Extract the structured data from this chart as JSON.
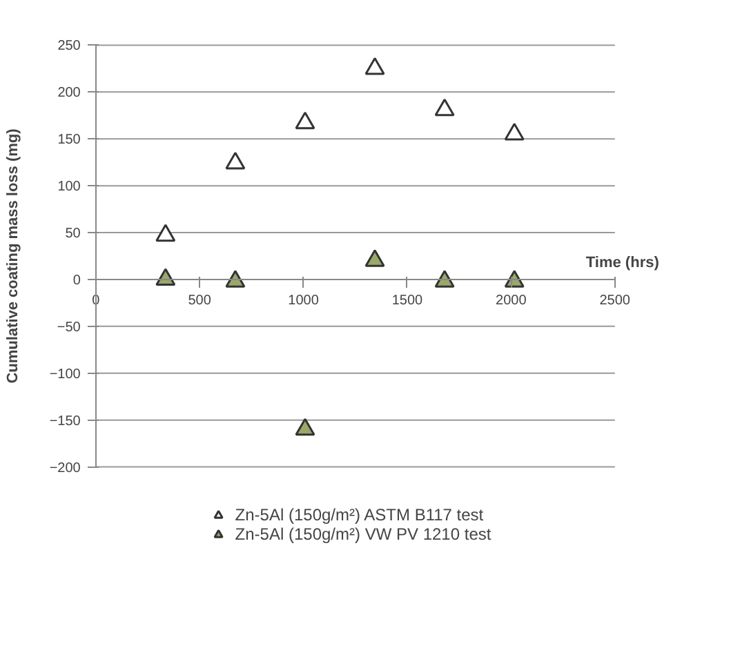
{
  "chart_data": {
    "type": "scatter",
    "xlabel": "Time (hrs)",
    "ylabel": "Cumulative coating mass loss (mg)",
    "x": [
      336,
      672,
      1008,
      1344,
      1680,
      2016
    ],
    "series": [
      {
        "name": "Zn-5Al (150g/m²) ASTM B117 test",
        "color": "#ffffff",
        "values": [
          47,
          124,
          167,
          225,
          181,
          155
        ]
      },
      {
        "name": "Zn-5Al (150g/m²) VW PV 1210 test",
        "color": "#9aa86a",
        "values": [
          0,
          -2,
          -160,
          20,
          -2,
          -2
        ]
      }
    ],
    "xlim": [
      0,
      2500
    ],
    "xticks": [
      0,
      500,
      1000,
      1500,
      2000,
      2500
    ],
    "ylim": [
      -200,
      250
    ],
    "yticks": [
      -200,
      -150,
      -100,
      -50,
      0,
      50,
      100,
      150,
      200,
      250
    ],
    "grid": "y",
    "legend": "bottom",
    "marker": "triangle"
  }
}
